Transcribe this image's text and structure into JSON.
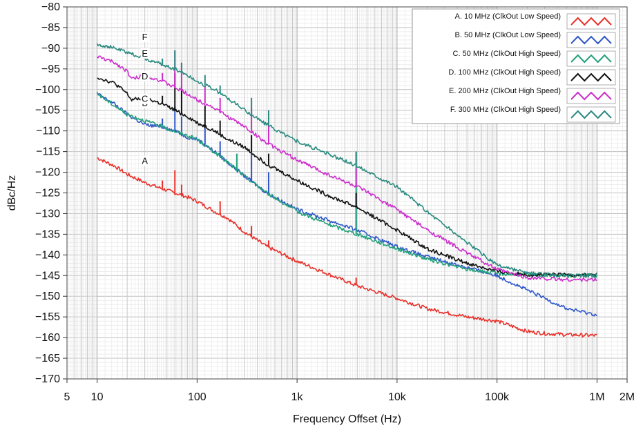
{
  "chart_data": {
    "type": "line",
    "xlabel": "Frequency Offset (Hz)",
    "ylabel": "dBc/Hz",
    "xscale": "log",
    "xlim": [
      5,
      2000000
    ],
    "ylim": [
      -170,
      -80
    ],
    "x_ticks": [
      {
        "value": 5,
        "label": "5"
      },
      {
        "value": 10,
        "label": "10"
      },
      {
        "value": 100,
        "label": "100"
      },
      {
        "value": 1000,
        "label": "1k"
      },
      {
        "value": 10000,
        "label": "10k"
      },
      {
        "value": 100000,
        "label": "100k"
      },
      {
        "value": 1000000,
        "label": "1M"
      },
      {
        "value": 2000000,
        "label": "2M"
      }
    ],
    "y_ticks": [
      {
        "value": -80,
        "label": "−80"
      },
      {
        "value": -85,
        "label": "−85"
      },
      {
        "value": -90,
        "label": "−90"
      },
      {
        "value": -95,
        "label": "−95"
      },
      {
        "value": -100,
        "label": "−100"
      },
      {
        "value": -105,
        "label": "−105"
      },
      {
        "value": -110,
        "label": "−110"
      },
      {
        "value": -115,
        "label": "−115"
      },
      {
        "value": -120,
        "label": "−120"
      },
      {
        "value": -125,
        "label": "−125"
      },
      {
        "value": -130,
        "label": "−130"
      },
      {
        "value": -135,
        "label": "−135"
      },
      {
        "value": -140,
        "label": "−140"
      },
      {
        "value": -145,
        "label": "−145"
      },
      {
        "value": -150,
        "label": "−150"
      },
      {
        "value": -155,
        "label": "−155"
      },
      {
        "value": -160,
        "label": "−160"
      },
      {
        "value": -165,
        "label": "−165"
      },
      {
        "value": -170,
        "label": "−170"
      }
    ],
    "grid": true,
    "legend_position": "top-right",
    "series": [
      {
        "name": "A. 10 MHz (ClkOut Low Speed)",
        "label": "A",
        "color": "#e8302a",
        "points": [
          [
            10,
            -116.5
          ],
          [
            15,
            -118.5
          ],
          [
            20,
            -120.5
          ],
          [
            30,
            -122.5
          ],
          [
            45,
            -124
          ],
          [
            60,
            -125
          ],
          [
            80,
            -126
          ],
          [
            100,
            -127
          ],
          [
            150,
            -129.5
          ],
          [
            200,
            -131
          ],
          [
            300,
            -134.5
          ],
          [
            500,
            -138
          ],
          [
            1000,
            -141.5
          ],
          [
            2000,
            -144.5
          ],
          [
            4000,
            -147.5
          ],
          [
            10000,
            -150.5
          ],
          [
            20000,
            -153
          ],
          [
            50000,
            -155
          ],
          [
            100000,
            -156
          ],
          [
            200000,
            -158.5
          ],
          [
            300000,
            -159
          ],
          [
            500000,
            -159.3
          ],
          [
            1000000,
            -159.5
          ]
        ],
        "spurs": [
          [
            45,
            -122
          ],
          [
            60,
            -119.5
          ],
          [
            70,
            -123
          ],
          [
            170,
            -127
          ],
          [
            350,
            -133
          ],
          [
            520,
            -136.5
          ],
          [
            3900,
            -145.5
          ]
        ]
      },
      {
        "name": "B. 50 MHz  (ClkOut Low Speed)",
        "label": "B",
        "color": "#2e56c9",
        "points": [
          [
            10,
            -101
          ],
          [
            15,
            -103.5
          ],
          [
            20,
            -106
          ],
          [
            30,
            -108.5
          ],
          [
            45,
            -109
          ],
          [
            60,
            -110
          ],
          [
            80,
            -111.5
          ],
          [
            100,
            -112
          ],
          [
            150,
            -115
          ],
          [
            200,
            -117.5
          ],
          [
            300,
            -121
          ],
          [
            500,
            -125
          ],
          [
            1000,
            -129
          ],
          [
            2000,
            -131.5
          ],
          [
            4000,
            -134
          ],
          [
            10000,
            -138
          ],
          [
            20000,
            -140.5
          ],
          [
            50000,
            -143
          ],
          [
            100000,
            -145
          ],
          [
            200000,
            -148.5
          ],
          [
            500000,
            -153
          ],
          [
            1000000,
            -154.5
          ]
        ],
        "spurs": [
          [
            45,
            -107
          ],
          [
            50,
            -109
          ],
          [
            60,
            -104
          ],
          [
            70,
            -106.5
          ],
          [
            120,
            -109
          ],
          [
            170,
            -112.5
          ],
          [
            350,
            -115.5
          ],
          [
            520,
            -120
          ],
          [
            3900,
            -125
          ]
        ]
      },
      {
        "name": "C. 50 MHz  (ClkOut High Speed)",
        "label": "C",
        "color": "#22a07a",
        "points": [
          [
            10,
            -101
          ],
          [
            20,
            -106
          ],
          [
            45,
            -109
          ],
          [
            100,
            -112
          ],
          [
            200,
            -117.5
          ],
          [
            300,
            -121
          ],
          [
            500,
            -125
          ],
          [
            1000,
            -129.5
          ],
          [
            2000,
            -132.5
          ],
          [
            4000,
            -135
          ],
          [
            10000,
            -138.5
          ],
          [
            20000,
            -141
          ],
          [
            50000,
            -143.5
          ],
          [
            100000,
            -144.5
          ],
          [
            200000,
            -144.8
          ],
          [
            500000,
            -145
          ],
          [
            1000000,
            -145
          ]
        ],
        "spurs": [
          [
            250,
            -115.5
          ],
          [
            3900,
            -115
          ]
        ]
      },
      {
        "name": "D. 100 MHz  (ClkOut High Speed)",
        "label": "D",
        "color": "#111111",
        "points": [
          [
            10,
            -97
          ],
          [
            15,
            -98.5
          ],
          [
            20,
            -101
          ],
          [
            22,
            -102.5
          ],
          [
            30,
            -102
          ],
          [
            45,
            -103.5
          ],
          [
            60,
            -105
          ],
          [
            80,
            -106.5
          ],
          [
            100,
            -108
          ],
          [
            150,
            -110
          ],
          [
            200,
            -112
          ],
          [
            300,
            -114
          ],
          [
            500,
            -118
          ],
          [
            1000,
            -122
          ],
          [
            2000,
            -125.5
          ],
          [
            4000,
            -128.5
          ],
          [
            10000,
            -134
          ],
          [
            20000,
            -138.5
          ],
          [
            50000,
            -142
          ],
          [
            100000,
            -144
          ],
          [
            200000,
            -144.8
          ],
          [
            500000,
            -144.8
          ],
          [
            1000000,
            -144.8
          ]
        ],
        "spurs": [
          [
            45,
            -101.5
          ],
          [
            60,
            -96
          ],
          [
            70,
            -99
          ],
          [
            120,
            -104
          ],
          [
            170,
            -107.5
          ],
          [
            350,
            -111
          ],
          [
            520,
            -115.5
          ],
          [
            3900,
            -125
          ]
        ]
      },
      {
        "name": "E. 200 MHz  (ClkOut High Speed)",
        "label": "E",
        "color": "#cc2ecc",
        "points": [
          [
            10,
            -92
          ],
          [
            15,
            -93.5
          ],
          [
            20,
            -95.5
          ],
          [
            22,
            -97.5
          ],
          [
            30,
            -96.5
          ],
          [
            45,
            -98
          ],
          [
            60,
            -99.5
          ],
          [
            80,
            -101
          ],
          [
            100,
            -102.5
          ],
          [
            150,
            -104.5
          ],
          [
            200,
            -106.5
          ],
          [
            300,
            -109
          ],
          [
            500,
            -113
          ],
          [
            1000,
            -117
          ],
          [
            2000,
            -120.5
          ],
          [
            4000,
            -123.5
          ],
          [
            10000,
            -129
          ],
          [
            20000,
            -134
          ],
          [
            50000,
            -139.5
          ],
          [
            100000,
            -143.5
          ],
          [
            200000,
            -145.5
          ],
          [
            500000,
            -146
          ],
          [
            1000000,
            -146
          ]
        ],
        "spurs": [
          [
            45,
            -96
          ],
          [
            60,
            -90.5
          ],
          [
            70,
            -93.5
          ],
          [
            120,
            -99
          ],
          [
            170,
            -102
          ],
          [
            350,
            -104.5
          ],
          [
            520,
            -108.5
          ],
          [
            3900,
            -119
          ]
        ]
      },
      {
        "name": "F. 300 MHz  (ClkOut High Speed)",
        "label": "F",
        "color": "#2a8a80",
        "points": [
          [
            10,
            -89
          ],
          [
            15,
            -90
          ],
          [
            20,
            -91
          ],
          [
            30,
            -92.5
          ],
          [
            45,
            -94
          ],
          [
            60,
            -95
          ],
          [
            80,
            -96.5
          ],
          [
            100,
            -98
          ],
          [
            150,
            -100
          ],
          [
            200,
            -102
          ],
          [
            300,
            -105
          ],
          [
            500,
            -108.5
          ],
          [
            1000,
            -112.5
          ],
          [
            2000,
            -115.5
          ],
          [
            4000,
            -118.5
          ],
          [
            10000,
            -123.5
          ],
          [
            20000,
            -129.5
          ],
          [
            50000,
            -137
          ],
          [
            100000,
            -142.5
          ],
          [
            200000,
            -144.5
          ],
          [
            500000,
            -145
          ],
          [
            1000000,
            -145
          ]
        ],
        "spurs": [
          [
            45,
            -92.5
          ],
          [
            60,
            -90.5
          ],
          [
            70,
            -93.5
          ],
          [
            120,
            -96.5
          ],
          [
            170,
            -99
          ],
          [
            350,
            -102
          ],
          [
            520,
            -105
          ],
          [
            3900,
            -115
          ]
        ]
      }
    ]
  }
}
